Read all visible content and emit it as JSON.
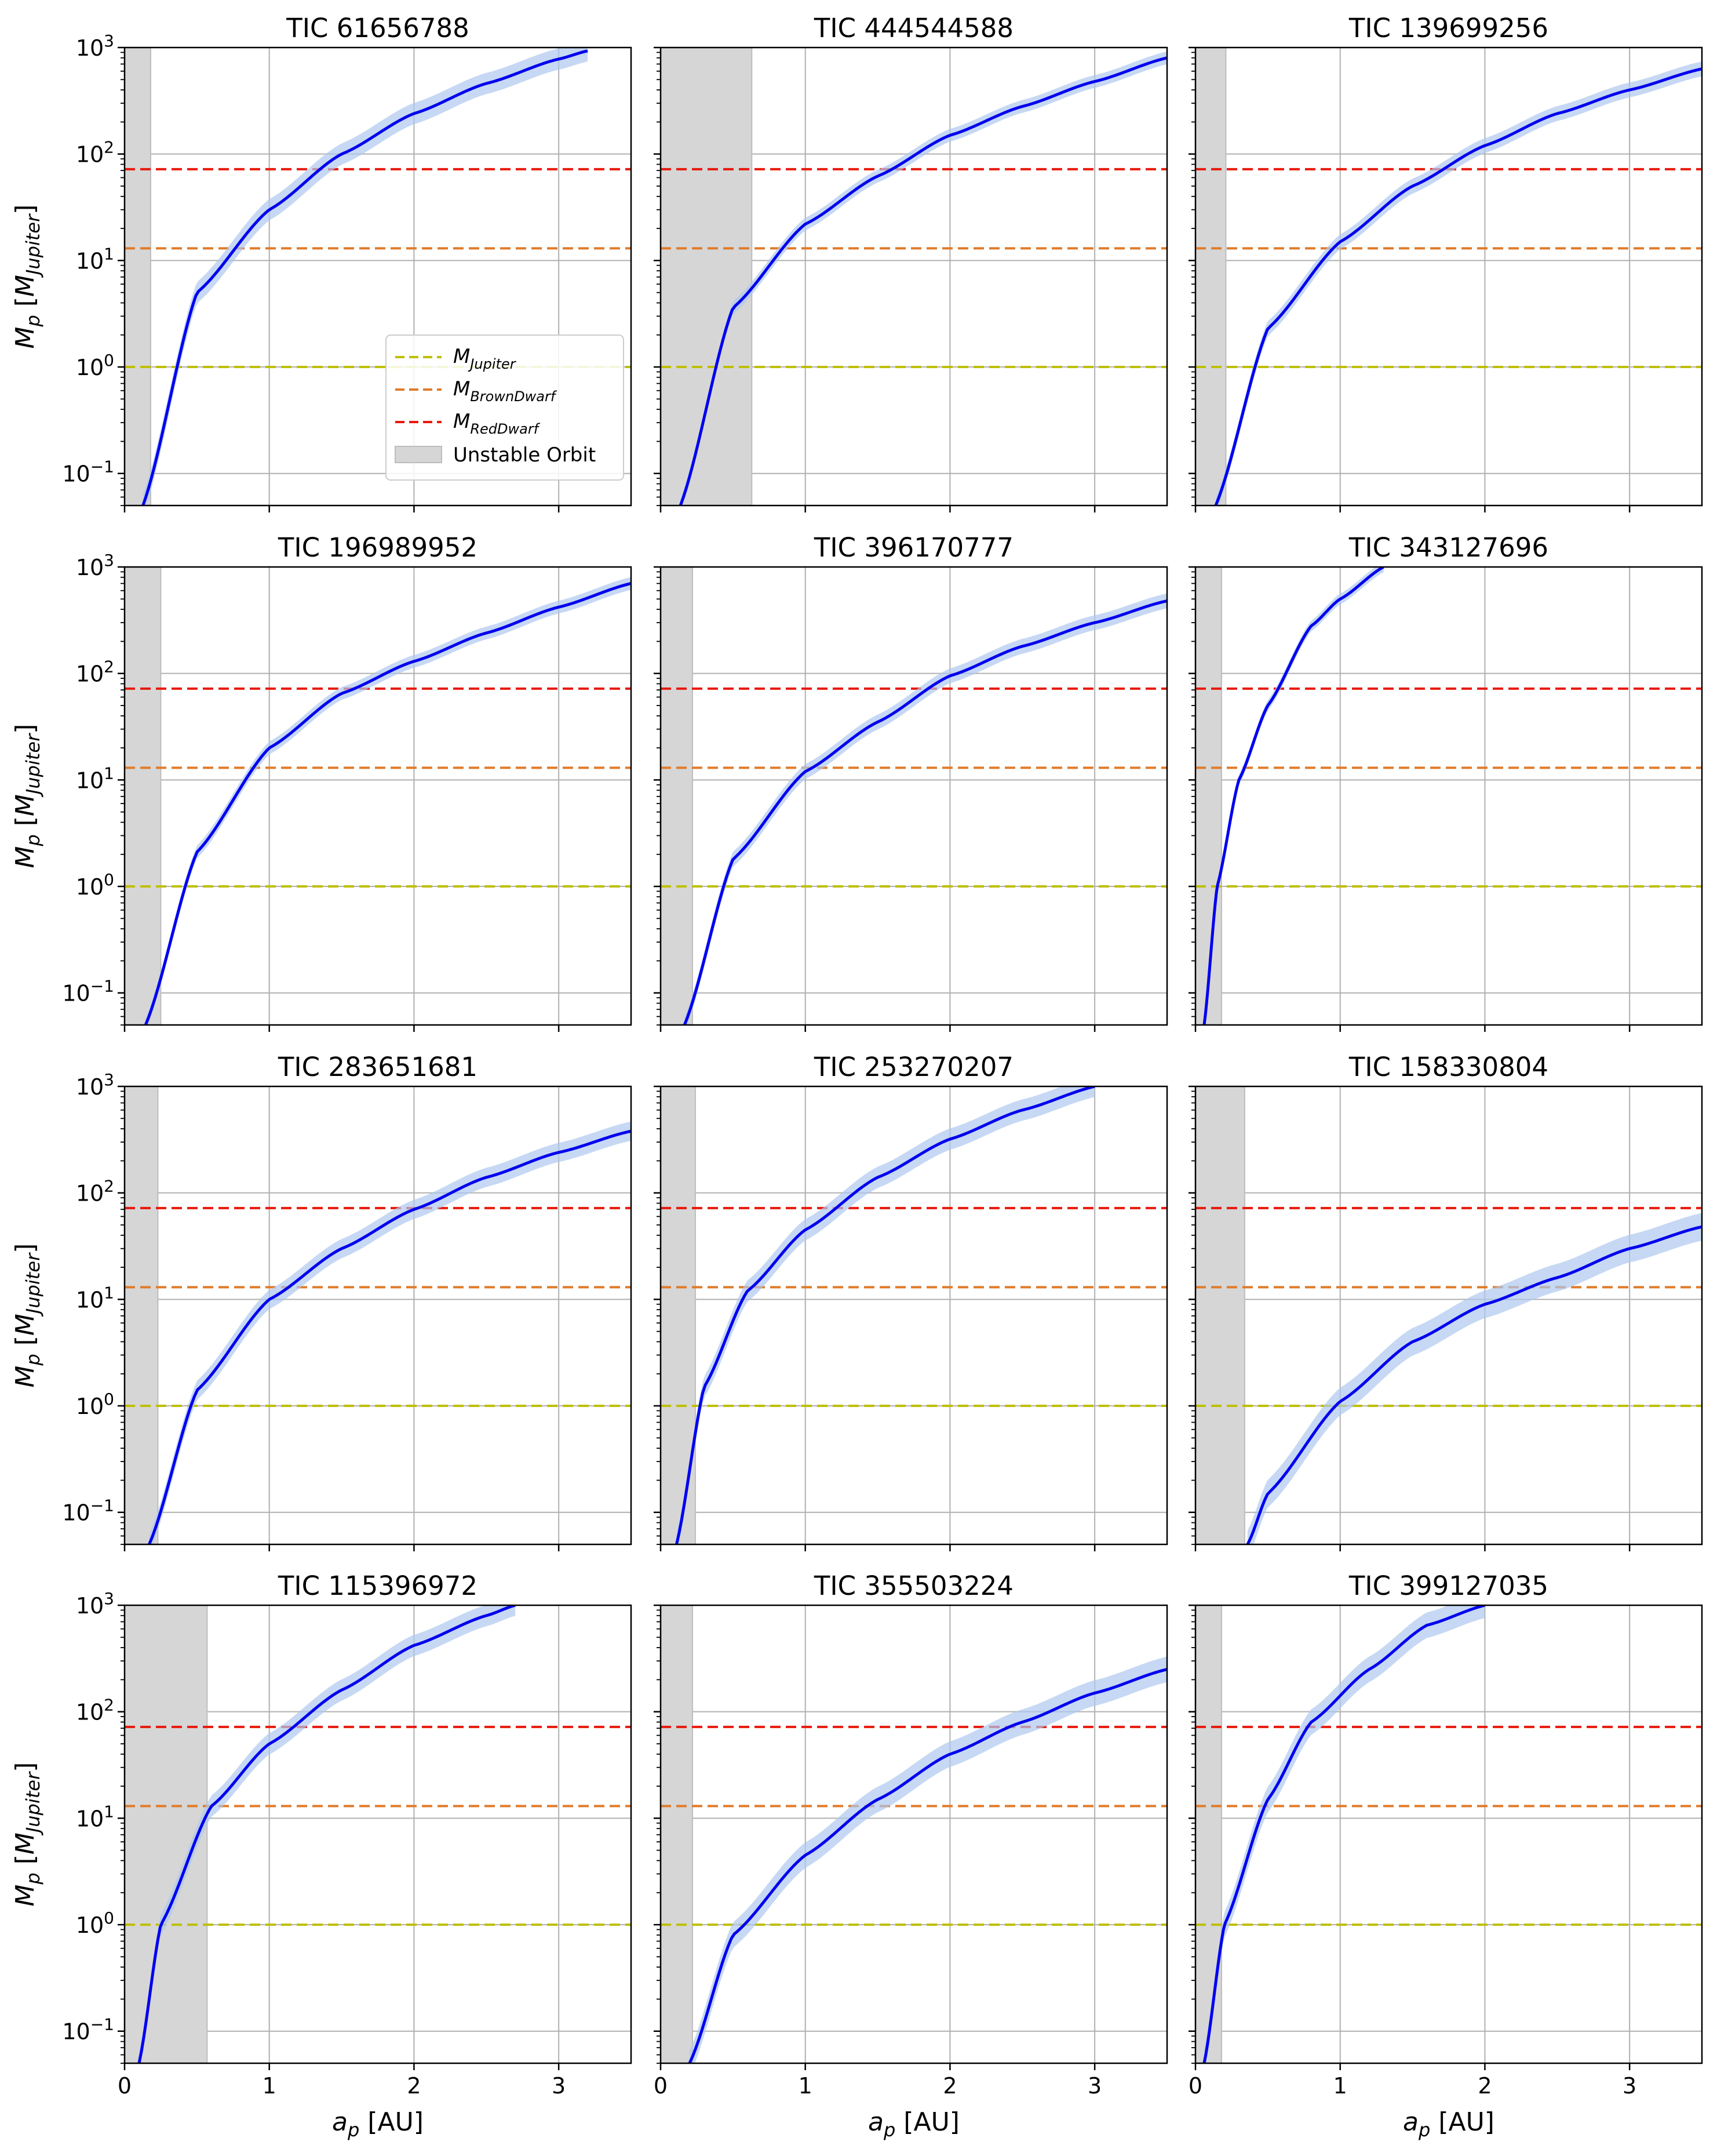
{
  "chart_data": {
    "type": "line",
    "layout": {
      "rows": 4,
      "cols": 3
    },
    "xlabel": "a_p [AU]",
    "ylabel": "M_p [M_Jupiter]",
    "xlim": [
      0,
      3.5
    ],
    "ylim": [
      0.05,
      1000
    ],
    "yscale": "log",
    "grid": true,
    "xticks": [
      0,
      1,
      2,
      3
    ],
    "yticks": [
      0.1,
      1,
      10,
      100,
      1000
    ],
    "xtick_labels": [
      "0",
      "1",
      "2",
      "3"
    ],
    "ytick_labels": [
      {
        "base": "10",
        "exp": "−1"
      },
      {
        "base": "10",
        "exp": "0"
      },
      {
        "base": "10",
        "exp": "1"
      },
      {
        "base": "10",
        "exp": "2"
      },
      {
        "base": "10",
        "exp": "3"
      }
    ],
    "reference_lines": [
      {
        "name": "M_Jupiter",
        "value": 1,
        "color": "#bfbf00"
      },
      {
        "name": "M_BrownDwarf",
        "value": 13,
        "color": "#e07b2a"
      },
      {
        "name": "M_RedDwarf",
        "value": 72,
        "color": "#e8190c"
      }
    ],
    "legend": {
      "panel": 0,
      "placement": "lower-right",
      "entries": [
        {
          "base": "M",
          "sub": "Jupiter",
          "kind": "dash",
          "color": "#bfbf00"
        },
        {
          "base": "M",
          "sub": "BrownDwarf",
          "kind": "dash",
          "color": "#e07b2a"
        },
        {
          "base": "M",
          "sub": "RedDwarf",
          "kind": "dash",
          "color": "#e8190c"
        },
        {
          "text": "Unstable Orbit",
          "kind": "patch",
          "color": "#d6d6d6"
        }
      ]
    },
    "colors": {
      "curve": "#0000ee",
      "band": "#aec7ee",
      "unstable": "#d6d6d6",
      "grid": "#b0b0b0"
    },
    "panels": [
      {
        "title": "TIC 61656788",
        "unstable_max": 0.18,
        "x": [
          0.127,
          0.5,
          1,
          1.5,
          2,
          2.5,
          3,
          3.2
        ],
        "y": [
          0.05,
          5,
          30,
          100,
          240,
          460,
          780,
          930
        ],
        "band": 0.1
      },
      {
        "title": "TIC 444544588",
        "unstable_max": 0.63,
        "x": [
          0.137,
          0.5,
          1,
          1.5,
          2,
          2.5,
          3,
          3.5
        ],
        "y": [
          0.05,
          3.6,
          22,
          62,
          150,
          280,
          480,
          800
        ],
        "band": 0.06
      },
      {
        "title": "TIC 139699256",
        "unstable_max": 0.21,
        "x": [
          0.14,
          0.5,
          1,
          1.5,
          2,
          2.5,
          3,
          3.5
        ],
        "y": [
          0.05,
          2.3,
          15,
          50,
          120,
          240,
          400,
          630
        ],
        "band": 0.07
      },
      {
        "title": "TIC 196989952",
        "unstable_max": 0.25,
        "x": [
          0.145,
          0.5,
          1,
          1.5,
          2,
          2.5,
          3,
          3.5
        ],
        "y": [
          0.05,
          2.1,
          20,
          65,
          130,
          240,
          420,
          700
        ],
        "band": 0.06
      },
      {
        "title": "TIC 396170777",
        "unstable_max": 0.22,
        "x": [
          0.165,
          0.5,
          1,
          1.5,
          2,
          2.5,
          3,
          3.5
        ],
        "y": [
          0.05,
          1.8,
          12,
          35,
          95,
          180,
          300,
          480
        ],
        "band": 0.07
      },
      {
        "title": "TIC 343127696",
        "unstable_max": 0.18,
        "x": [
          0.06,
          0.15,
          0.3,
          0.5,
          0.8,
          1.0,
          1.3
        ],
        "y": [
          0.05,
          1,
          10,
          50,
          280,
          500,
          1000
        ],
        "band": 0.05
      },
      {
        "title": "TIC 283651681",
        "unstable_max": 0.23,
        "x": [
          0.17,
          0.5,
          1,
          1.5,
          2,
          2.5,
          3,
          3.5
        ],
        "y": [
          0.05,
          1.4,
          10,
          30,
          70,
          140,
          240,
          380
        ],
        "band": 0.09
      },
      {
        "title": "TIC 253270207",
        "unstable_max": 0.24,
        "x": [
          0.11,
          0.3,
          0.6,
          1,
          1.5,
          2,
          2.5,
          3.0
        ],
        "y": [
          0.05,
          1.5,
          12,
          45,
          140,
          320,
          600,
          1000
        ],
        "band": 0.1
      },
      {
        "title": "TIC 158330804",
        "unstable_max": 0.34,
        "x": [
          0.36,
          0.5,
          1,
          1.5,
          2,
          2.5,
          3,
          3.5
        ],
        "y": [
          0.05,
          0.15,
          1.1,
          4,
          9,
          16,
          30,
          48
        ],
        "band": 0.13
      },
      {
        "title": "TIC 115396972",
        "unstable_max": 0.57,
        "x": [
          0.1,
          0.25,
          0.6,
          1,
          1.5,
          2,
          2.5,
          2.7
        ],
        "y": [
          0.05,
          1,
          13,
          50,
          160,
          420,
          800,
          1000
        ],
        "band": 0.1
      },
      {
        "title": "TIC 355503224",
        "unstable_max": 0.22,
        "x": [
          0.2,
          0.5,
          1,
          1.5,
          2,
          2.5,
          3,
          3.5
        ],
        "y": [
          0.05,
          0.8,
          4.5,
          15,
          40,
          80,
          150,
          250
        ],
        "band": 0.12
      },
      {
        "title": "TIC 399127035",
        "unstable_max": 0.18,
        "x": [
          0.06,
          0.2,
          0.5,
          0.8,
          1.2,
          1.6,
          2.0
        ],
        "y": [
          0.05,
          1,
          15,
          80,
          250,
          650,
          1000
        ],
        "band": 0.12
      }
    ]
  }
}
